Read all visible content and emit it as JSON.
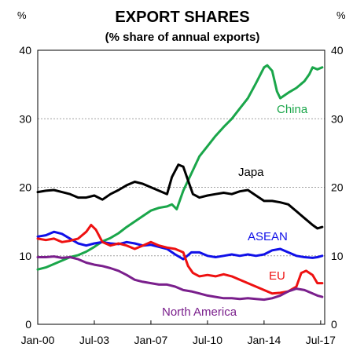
{
  "chart_data": {
    "type": "line",
    "title": "EXPORT SHARES",
    "subtitle": "(% share of annual  exports)",
    "y_unit_left": "%",
    "y_unit_right": "%",
    "ylim": [
      0,
      40
    ],
    "y_ticks": [
      0,
      10,
      20,
      30,
      40
    ],
    "xlim": [
      2000.0,
      2017.75
    ],
    "x_ticks": [
      {
        "label": "Jan-00",
        "value": 2000.0
      },
      {
        "label": "Jul-03",
        "value": 2003.5
      },
      {
        "label": "Jan-07",
        "value": 2007.0
      },
      {
        "label": "Jul-10",
        "value": 2010.5
      },
      {
        "label": "Jan-14",
        "value": 2014.0
      },
      {
        "label": "Jul-17",
        "value": 2017.5
      }
    ],
    "grid": true,
    "series": [
      {
        "name": "China",
        "color": "#1aa64a",
        "x": [
          2000.0,
          2000.5,
          2001.0,
          2001.5,
          2002.0,
          2002.5,
          2003.0,
          2003.5,
          2004.0,
          2004.5,
          2005.0,
          2005.5,
          2006.0,
          2006.5,
          2007.0,
          2007.5,
          2008.0,
          2008.3,
          2008.6,
          2009.0,
          2009.5,
          2010.0,
          2010.5,
          2011.0,
          2011.5,
          2012.0,
          2012.5,
          2013.0,
          2013.5,
          2014.0,
          2014.2,
          2014.5,
          2014.8,
          2015.0,
          2015.5,
          2016.0,
          2016.5,
          2016.8,
          2017.0,
          2017.3,
          2017.6
        ],
        "y": [
          8.0,
          8.3,
          8.8,
          9.3,
          9.8,
          10.1,
          10.6,
          11.3,
          12.1,
          12.6,
          13.3,
          14.2,
          15.0,
          15.8,
          16.6,
          17.0,
          17.2,
          17.5,
          16.8,
          19.5,
          22.0,
          24.5,
          26.0,
          27.5,
          28.8,
          30.0,
          31.5,
          33.0,
          35.2,
          37.5,
          37.8,
          37.0,
          34.0,
          33.0,
          33.8,
          34.5,
          35.5,
          36.5,
          37.5,
          37.2,
          37.5
        ]
      },
      {
        "name": "Japa",
        "color": "#000000",
        "x": [
          2000.0,
          2000.5,
          2001.0,
          2001.5,
          2002.0,
          2002.5,
          2003.0,
          2003.5,
          2004.0,
          2004.5,
          2005.0,
          2005.5,
          2006.0,
          2006.5,
          2007.0,
          2007.5,
          2008.0,
          2008.3,
          2008.7,
          2009.0,
          2009.3,
          2009.6,
          2010.0,
          2010.5,
          2011.0,
          2011.5,
          2012.0,
          2012.5,
          2013.0,
          2013.5,
          2014.0,
          2014.5,
          2015.0,
          2015.5,
          2016.0,
          2016.5,
          2017.0,
          2017.3,
          2017.6
        ],
        "y": [
          19.3,
          19.5,
          19.6,
          19.3,
          19.0,
          18.5,
          18.5,
          18.8,
          18.2,
          19.0,
          19.6,
          20.3,
          20.8,
          20.5,
          20.0,
          19.5,
          19.0,
          21.5,
          23.3,
          23.0,
          21.0,
          19.0,
          18.5,
          18.8,
          19.0,
          19.2,
          19.0,
          19.4,
          19.6,
          18.8,
          18.0,
          18.0,
          17.8,
          17.5,
          16.5,
          15.5,
          14.5,
          14.0,
          14.2
        ]
      },
      {
        "name": "ASEAN",
        "color": "#1010e8",
        "x": [
          2000.0,
          2000.5,
          2001.0,
          2001.5,
          2002.0,
          2002.5,
          2003.0,
          2003.5,
          2004.0,
          2004.5,
          2005.0,
          2005.5,
          2006.0,
          2006.5,
          2007.0,
          2007.5,
          2008.0,
          2008.5,
          2009.0,
          2009.5,
          2010.0,
          2010.5,
          2011.0,
          2011.5,
          2012.0,
          2012.5,
          2013.0,
          2013.5,
          2014.0,
          2014.5,
          2015.0,
          2015.5,
          2016.0,
          2016.5,
          2017.0,
          2017.3,
          2017.6
        ],
        "y": [
          12.8,
          13.0,
          13.5,
          13.2,
          12.5,
          11.8,
          11.5,
          11.8,
          12.0,
          11.8,
          11.7,
          12.0,
          11.8,
          11.5,
          11.6,
          11.3,
          11.0,
          10.2,
          9.5,
          10.5,
          10.5,
          10.0,
          9.8,
          10.0,
          10.2,
          10.0,
          10.2,
          10.0,
          10.2,
          10.8,
          11.0,
          10.5,
          10.0,
          9.8,
          9.7,
          9.8,
          10.0
        ]
      },
      {
        "name": "EU",
        "color": "#ee1111",
        "x": [
          2000.0,
          2000.5,
          2001.0,
          2001.5,
          2002.0,
          2002.5,
          2003.0,
          2003.3,
          2003.6,
          2004.0,
          2004.5,
          2005.0,
          2005.5,
          2006.0,
          2006.5,
          2007.0,
          2007.5,
          2008.0,
          2008.5,
          2009.0,
          2009.3,
          2009.6,
          2010.0,
          2010.5,
          2011.0,
          2011.5,
          2012.0,
          2012.5,
          2013.0,
          2013.5,
          2014.0,
          2014.5,
          2015.0,
          2015.5,
          2016.0,
          2016.3,
          2016.6,
          2017.0,
          2017.3,
          2017.6
        ],
        "y": [
          12.5,
          12.3,
          12.5,
          12.0,
          12.2,
          12.5,
          13.5,
          14.5,
          13.8,
          12.0,
          11.5,
          11.8,
          11.5,
          11.0,
          11.5,
          12.0,
          11.5,
          11.2,
          11.0,
          10.5,
          8.5,
          7.5,
          7.0,
          7.2,
          7.0,
          7.3,
          7.0,
          6.5,
          6.0,
          5.5,
          5.0,
          4.5,
          4.6,
          4.8,
          5.5,
          7.5,
          7.8,
          7.2,
          6.0,
          6.0
        ]
      },
      {
        "name": "North America",
        "color": "#7a1f8c",
        "x": [
          2000.0,
          2000.5,
          2001.0,
          2001.5,
          2002.0,
          2002.5,
          2003.0,
          2003.5,
          2004.0,
          2004.5,
          2005.0,
          2005.5,
          2006.0,
          2006.5,
          2007.0,
          2007.5,
          2008.0,
          2008.5,
          2009.0,
          2009.5,
          2010.0,
          2010.5,
          2011.0,
          2011.5,
          2012.0,
          2012.5,
          2013.0,
          2013.5,
          2014.0,
          2014.5,
          2015.0,
          2015.5,
          2016.0,
          2016.5,
          2017.0,
          2017.3,
          2017.6
        ],
        "y": [
          9.8,
          9.8,
          9.9,
          9.7,
          9.8,
          9.5,
          9.0,
          8.7,
          8.5,
          8.2,
          7.8,
          7.2,
          6.5,
          6.2,
          6.0,
          5.8,
          5.8,
          5.5,
          5.0,
          4.8,
          4.5,
          4.2,
          4.0,
          3.8,
          3.8,
          3.7,
          3.8,
          3.7,
          3.6,
          3.8,
          4.2,
          4.8,
          5.2,
          5.0,
          4.5,
          4.2,
          4.0
        ]
      }
    ]
  },
  "labels": {
    "china": "China",
    "japan": "Japa",
    "asean": "ASEAN",
    "eu": "EU",
    "north_america": "North America"
  }
}
